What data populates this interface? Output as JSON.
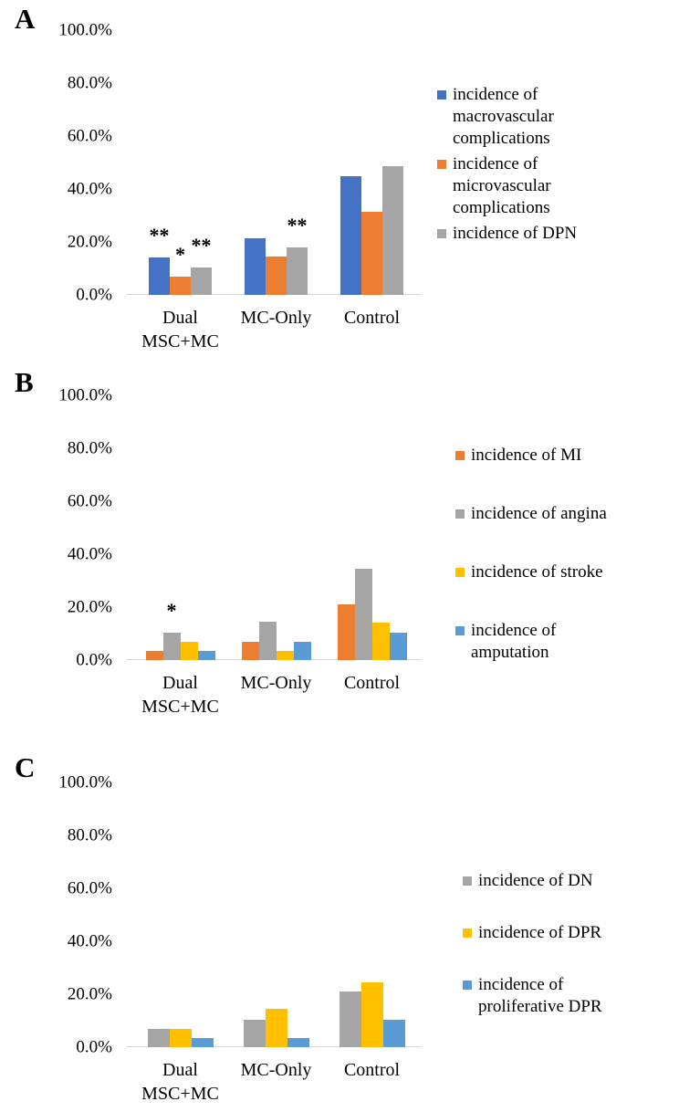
{
  "figure": {
    "panel_count": 3,
    "legend_position": "right",
    "grid": false
  },
  "colors": {
    "blue": "#4472C4",
    "orange": "#ED7D31",
    "gray": "#A5A5A5",
    "yellow": "#FFC000",
    "light_blue": "#5B9BD5",
    "axis_line": "#D9D9D9",
    "text": "#000000"
  },
  "chart_data": [
    {
      "panel_label": "A",
      "type": "bar",
      "categories": [
        [
          "Dual",
          "MSC+MC"
        ],
        [
          "MC-Only"
        ],
        [
          "Control"
        ]
      ],
      "y_axis": {
        "min": 0,
        "max": 100,
        "unit": "%",
        "ticks": [
          "100.0%",
          "80.0%",
          "60.0%",
          "40.0%",
          "20.0%",
          "0.0%"
        ]
      },
      "series": [
        {
          "name": "incidence of macrovascular complications",
          "color": "#4472C4",
          "values": [
            14.0,
            21.5,
            45.0
          ]
        },
        {
          "name": "incidence of microvascular complications",
          "color": "#ED7D31",
          "values": [
            7.0,
            14.5,
            31.5
          ]
        },
        {
          "name": "incidence of DPN",
          "color": "#A5A5A5",
          "values": [
            10.5,
            18.0,
            48.5
          ]
        }
      ],
      "annotations": [
        {
          "category": 0,
          "series": 0,
          "text": "**"
        },
        {
          "category": 0,
          "series": 1,
          "text": "*"
        },
        {
          "category": 0,
          "series": 2,
          "text": "**"
        },
        {
          "category": 1,
          "series": 2,
          "text": "**"
        }
      ]
    },
    {
      "panel_label": "B",
      "type": "bar",
      "categories": [
        [
          "Dual",
          "MSC+MC"
        ],
        [
          "MC-Only"
        ],
        [
          "Control"
        ]
      ],
      "y_axis": {
        "min": 0,
        "max": 100,
        "unit": "%",
        "ticks": [
          "100.0%",
          "80.0%",
          "60.0%",
          "40.0%",
          "20.0%",
          "0.0%"
        ]
      },
      "series": [
        {
          "name": "incidence of MI",
          "color": "#ED7D31",
          "values": [
            3.5,
            7.0,
            21.0
          ]
        },
        {
          "name": "incidence of angina",
          "color": "#A5A5A5",
          "values": [
            10.5,
            14.5,
            34.5
          ]
        },
        {
          "name": "incidence of stroke",
          "color": "#FFC000",
          "values": [
            7.0,
            3.5,
            14.0
          ]
        },
        {
          "name": "incidence of amputation",
          "color": "#5B9BD5",
          "values": [
            3.5,
            7.0,
            10.5
          ]
        }
      ],
      "annotations": [
        {
          "category": 0,
          "series": 1,
          "text": "*"
        }
      ]
    },
    {
      "panel_label": "C",
      "type": "bar",
      "categories": [
        [
          "Dual",
          "MSC+MC"
        ],
        [
          "MC-Only"
        ],
        [
          "Control"
        ]
      ],
      "y_axis": {
        "min": 0,
        "max": 100,
        "unit": "%",
        "ticks": [
          "100.0%",
          "80.0%",
          "60.0%",
          "40.0%",
          "20.0%",
          "0.0%"
        ]
      },
      "series": [
        {
          "name": "incidence of DN",
          "color": "#A5A5A5",
          "values": [
            7.0,
            10.5,
            21.0
          ]
        },
        {
          "name": "incidence of DPR",
          "color": "#FFC000",
          "values": [
            7.0,
            14.5,
            24.5
          ]
        },
        {
          "name": "incidence of proliferative DPR",
          "color": "#5B9BD5",
          "values": [
            3.5,
            3.5,
            10.5
          ]
        }
      ],
      "annotations": []
    }
  ]
}
